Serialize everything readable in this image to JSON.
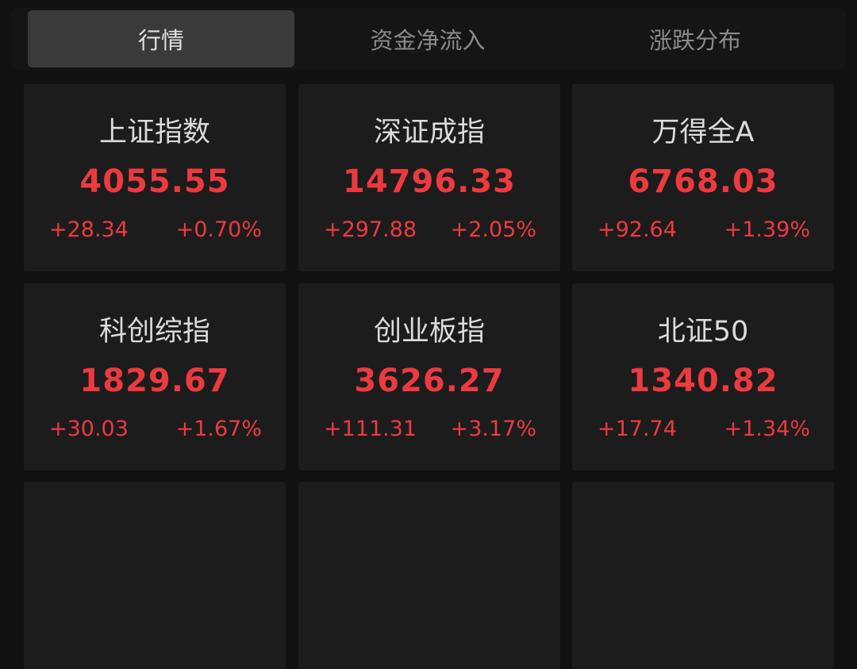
{
  "tabs": [
    {
      "label": "行情",
      "active": true
    },
    {
      "label": "资金净流入",
      "active": false
    },
    {
      "label": "涨跌分布",
      "active": false
    }
  ],
  "colors": {
    "up": "#ec3a3f",
    "background": "#111111",
    "card": "#1c1c1c"
  },
  "indices": [
    {
      "name": "上证指数",
      "value": "4055.55",
      "change": "+28.34",
      "pct": "+0.70%"
    },
    {
      "name": "深证成指",
      "value": "14796.33",
      "change": "+297.88",
      "pct": "+2.05%"
    },
    {
      "name": "万得全A",
      "value": "6768.03",
      "change": "+92.64",
      "pct": "+1.39%"
    },
    {
      "name": "科创综指",
      "value": "1829.67",
      "change": "+30.03",
      "pct": "+1.67%"
    },
    {
      "name": "创业板指",
      "value": "3626.27",
      "change": "+111.31",
      "pct": "+3.17%"
    },
    {
      "name": "北证50",
      "value": "1340.82",
      "change": "+17.74",
      "pct": "+1.34%"
    }
  ]
}
